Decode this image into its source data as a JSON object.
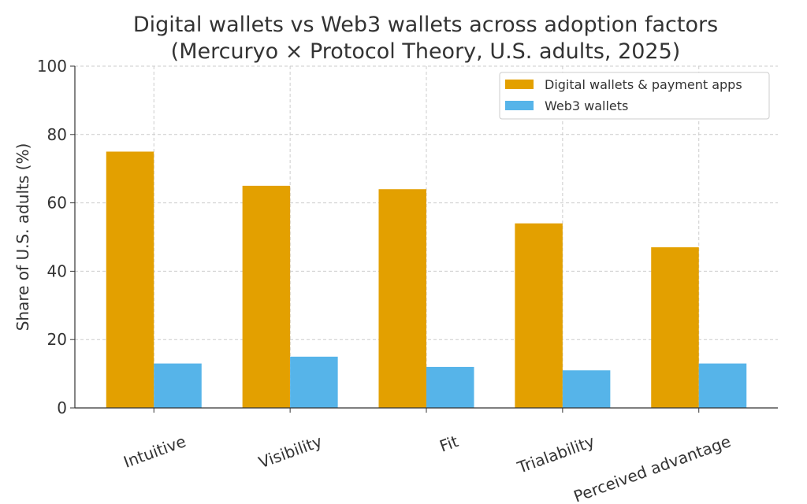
{
  "chart_data": {
    "type": "bar",
    "title": "Digital wallets vs Web3 wallets across adoption factors\n(Mercuryo × Protocol Theory, U.S. adults, 2025)",
    "title_lines": [
      "Digital wallets vs Web3 wallets across adoption factors",
      "(Mercuryo × Protocol Theory, U.S. adults, 2025)"
    ],
    "xlabel": "",
    "ylabel": "Share of U.S. adults (%)",
    "ylim": [
      0,
      100
    ],
    "yticks": [
      0,
      20,
      40,
      60,
      80,
      100
    ],
    "categories": [
      "Intuitive",
      "Visibility",
      "Fit",
      "Trialability",
      "Perceived advantage"
    ],
    "series": [
      {
        "name": "Digital wallets & payment apps",
        "color": "#E3A000",
        "values": [
          75,
          65,
          64,
          54,
          47
        ]
      },
      {
        "name": "Web3 wallets",
        "color": "#56B4E9",
        "values": [
          13,
          15,
          12,
          11,
          13
        ]
      }
    ],
    "grid": true,
    "legend_position": "top-right"
  }
}
